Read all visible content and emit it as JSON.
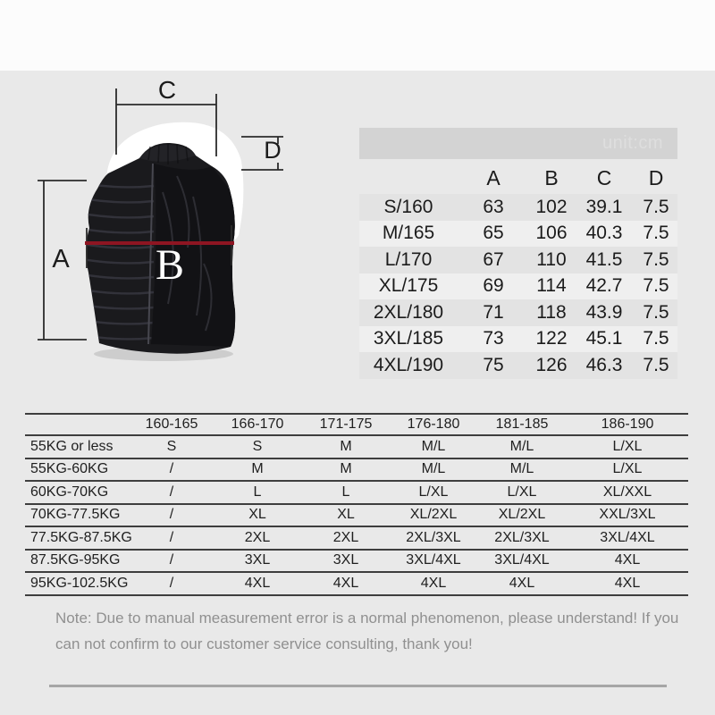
{
  "unit_label": "unit:cm",
  "diagram": {
    "label_a": "A",
    "label_b": "B",
    "label_c": "C",
    "label_d": "D",
    "measure_line_color": "#8e1522"
  },
  "size_table": {
    "columns": [
      "A",
      "B",
      "C",
      "D"
    ],
    "rows": [
      {
        "size": "S/160",
        "values": [
          "63",
          "102",
          "39.1",
          "7.5"
        ]
      },
      {
        "size": "M/165",
        "values": [
          "65",
          "106",
          "40.3",
          "7.5"
        ]
      },
      {
        "size": "L/170",
        "values": [
          "67",
          "110",
          "41.5",
          "7.5"
        ]
      },
      {
        "size": "XL/175",
        "values": [
          "69",
          "114",
          "42.7",
          "7.5"
        ]
      },
      {
        "size": "2XL/180",
        "values": [
          "71",
          "118",
          "43.9",
          "7.5"
        ]
      },
      {
        "size": "3XL/185",
        "values": [
          "73",
          "122",
          "45.1",
          "7.5"
        ]
      },
      {
        "size": "4XL/190",
        "values": [
          "75",
          "126",
          "46.3",
          "7.5"
        ]
      }
    ]
  },
  "fit_table": {
    "height_columns": [
      "160-165",
      "166-170",
      "171-175",
      "176-180",
      "181-185",
      "186-190"
    ],
    "rows": [
      {
        "weight": "55KG or less",
        "values": [
          "S",
          "S",
          "M",
          "M/L",
          "M/L",
          "L/XL"
        ]
      },
      {
        "weight": "55KG-60KG",
        "values": [
          "/",
          "M",
          "M",
          "M/L",
          "M/L",
          "L/XL"
        ]
      },
      {
        "weight": "60KG-70KG",
        "values": [
          "/",
          "L",
          "L",
          "L/XL",
          "L/XL",
          "XL/XXL"
        ]
      },
      {
        "weight": "70KG-77.5KG",
        "values": [
          "/",
          "XL",
          "XL",
          "XL/2XL",
          "XL/2XL",
          "XXL/3XL"
        ]
      },
      {
        "weight": "77.5KG-87.5KG",
        "values": [
          "/",
          "2XL",
          "2XL",
          "2XL/3XL",
          "2XL/3XL",
          "3XL/4XL"
        ]
      },
      {
        "weight": "87.5KG-95KG",
        "values": [
          "/",
          "3XL",
          "3XL",
          "3XL/4XL",
          "3XL/4XL",
          "4XL"
        ]
      },
      {
        "weight": "95KG-102.5KG",
        "values": [
          "/",
          "4XL",
          "4XL",
          "4XL",
          "4XL",
          "4XL"
        ]
      }
    ]
  },
  "note": {
    "line1": "Note: Due to manual measurement error is a normal phenomenon, please understand! If you",
    "line2": "can not confirm to our customer service consulting, thank you!"
  }
}
